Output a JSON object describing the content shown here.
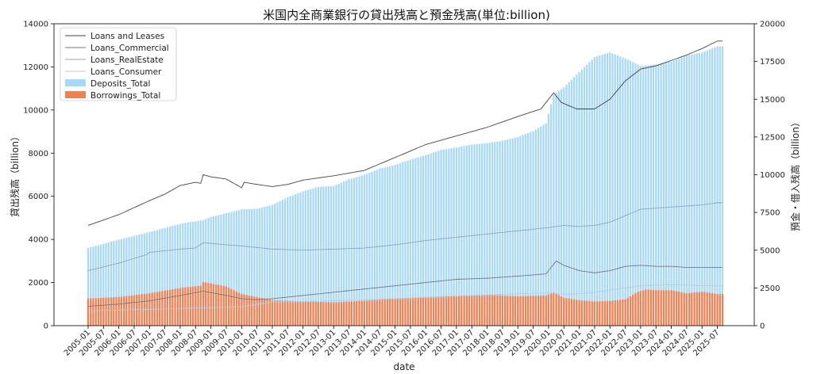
{
  "chart_data": {
    "type": "bar+line",
    "title": "米国内全商業銀行の貸出残高と預金残高(単位:billion)",
    "xlabel": "date",
    "ylabel_left": "貸出残高（billion）",
    "ylabel_right": "預金・借入残高（billion）",
    "ylim_left": [
      0,
      14000
    ],
    "ylim_right": [
      0,
      20000
    ],
    "yticks_left": [
      0,
      2000,
      4000,
      6000,
      8000,
      10000,
      12000,
      14000
    ],
    "yticks_right": [
      0,
      2500,
      5000,
      7500,
      10000,
      12500,
      15000,
      17500,
      20000
    ],
    "x_start": "2005-01",
    "x_end": "2025-09",
    "x_tick_labels": [
      "2005-01",
      "2005-07",
      "2006-01",
      "2006-07",
      "2007-01",
      "2007-07",
      "2008-01",
      "2008-07",
      "2009-01",
      "2009-07",
      "2010-01",
      "2010-07",
      "2011-01",
      "2011-07",
      "2012-01",
      "2012-07",
      "2013-01",
      "2013-07",
      "2014-01",
      "2014-07",
      "2015-01",
      "2015-07",
      "2016-01",
      "2016-07",
      "2017-01",
      "2017-07",
      "2018-01",
      "2018-07",
      "2019-01",
      "2019-07",
      "2020-01",
      "2020-07",
      "2021-01",
      "2021-07",
      "2022-01",
      "2022-07",
      "2023-01",
      "2023-07",
      "2024-01",
      "2024-07",
      "2025-01",
      "2025-07"
    ],
    "legend_position": "top-left",
    "legend": [
      "Loans and Leases",
      "Loans_Commercial",
      "Loans_RealEstate",
      "Loans_Consumer",
      "Deposits_Total",
      "Borrowings_Total"
    ],
    "lines": [
      {
        "name": "Loans and Leases",
        "axis": "left",
        "color": "#444444",
        "points": [
          [
            "2005-01",
            4650
          ],
          [
            "2006-01",
            5150
          ],
          [
            "2007-01",
            5800
          ],
          [
            "2007-07",
            6100
          ],
          [
            "2008-01",
            6500
          ],
          [
            "2008-07",
            6650
          ],
          [
            "2008-09",
            6600
          ],
          [
            "2008-10",
            7000
          ],
          [
            "2009-01",
            6900
          ],
          [
            "2009-07",
            6800
          ],
          [
            "2010-01",
            6400
          ],
          [
            "2010-02",
            6650
          ],
          [
            "2010-07",
            6550
          ],
          [
            "2011-01",
            6450
          ],
          [
            "2011-07",
            6550
          ],
          [
            "2012-01",
            6750
          ],
          [
            "2013-01",
            6950
          ],
          [
            "2014-01",
            7200
          ],
          [
            "2015-01",
            7800
          ],
          [
            "2016-01",
            8400
          ],
          [
            "2017-01",
            8800
          ],
          [
            "2018-01",
            9200
          ],
          [
            "2019-01",
            9700
          ],
          [
            "2019-10",
            10050
          ],
          [
            "2020-03",
            10800
          ],
          [
            "2020-06",
            10350
          ],
          [
            "2020-12",
            10050
          ],
          [
            "2021-07",
            10050
          ],
          [
            "2022-01",
            10500
          ],
          [
            "2022-07",
            11350
          ],
          [
            "2023-01",
            11900
          ],
          [
            "2023-07",
            12050
          ],
          [
            "2024-01",
            12300
          ],
          [
            "2024-07",
            12550
          ],
          [
            "2025-01",
            12850
          ],
          [
            "2025-07",
            13200
          ]
        ]
      },
      {
        "name": "Loans_Commercial",
        "axis": "left",
        "color": "#777777",
        "points": [
          [
            "2005-01",
            900
          ],
          [
            "2006-01",
            1000
          ],
          [
            "2007-01",
            1150
          ],
          [
            "2008-01",
            1400
          ],
          [
            "2008-10",
            1600
          ],
          [
            "2009-07",
            1400
          ],
          [
            "2010-01",
            1250
          ],
          [
            "2010-07",
            1200
          ],
          [
            "2011-01",
            1250
          ],
          [
            "2012-01",
            1400
          ],
          [
            "2013-01",
            1550
          ],
          [
            "2014-01",
            1700
          ],
          [
            "2015-01",
            1850
          ],
          [
            "2016-01",
            2000
          ],
          [
            "2017-01",
            2150
          ],
          [
            "2018-01",
            2200
          ],
          [
            "2019-01",
            2300
          ],
          [
            "2019-12",
            2400
          ],
          [
            "2020-04",
            3000
          ],
          [
            "2020-07",
            2800
          ],
          [
            "2021-01",
            2550
          ],
          [
            "2021-07",
            2450
          ],
          [
            "2022-01",
            2550
          ],
          [
            "2022-07",
            2750
          ],
          [
            "2023-01",
            2800
          ],
          [
            "2023-07",
            2750
          ],
          [
            "2024-01",
            2750
          ],
          [
            "2024-07",
            2700
          ],
          [
            "2025-01",
            2700
          ],
          [
            "2025-07",
            2700
          ]
        ]
      },
      {
        "name": "Loans_RealEstate",
        "axis": "left",
        "color": "#8fa5b5",
        "points": [
          [
            "2005-01",
            2550
          ],
          [
            "2006-01",
            2900
          ],
          [
            "2006-12",
            3300
          ],
          [
            "2007-01",
            3400
          ],
          [
            "2008-01",
            3550
          ],
          [
            "2008-07",
            3600
          ],
          [
            "2008-10",
            3850
          ],
          [
            "2009-07",
            3750
          ],
          [
            "2010-01",
            3700
          ],
          [
            "2011-01",
            3550
          ],
          [
            "2012-01",
            3500
          ],
          [
            "2013-01",
            3550
          ],
          [
            "2014-01",
            3600
          ],
          [
            "2015-01",
            3750
          ],
          [
            "2016-01",
            3950
          ],
          [
            "2017-01",
            4100
          ],
          [
            "2018-01",
            4250
          ],
          [
            "2019-01",
            4400
          ],
          [
            "2020-01",
            4550
          ],
          [
            "2020-07",
            4650
          ],
          [
            "2021-01",
            4600
          ],
          [
            "2021-07",
            4650
          ],
          [
            "2022-01",
            4800
          ],
          [
            "2022-07",
            5100
          ],
          [
            "2023-01",
            5400
          ],
          [
            "2024-01",
            5500
          ],
          [
            "2025-01",
            5600
          ],
          [
            "2025-07",
            5700
          ]
        ]
      },
      {
        "name": "Loans_Consumer",
        "axis": "left",
        "color": "#b9c9e4",
        "points": [
          [
            "2005-01",
            700
          ],
          [
            "2006-01",
            720
          ],
          [
            "2007-01",
            760
          ],
          [
            "2008-01",
            800
          ],
          [
            "2009-01",
            840
          ],
          [
            "2010-01",
            880
          ],
          [
            "2011-01",
            1100
          ],
          [
            "2012-01",
            1120
          ],
          [
            "2013-01",
            1150
          ],
          [
            "2014-01",
            1200
          ],
          [
            "2015-01",
            1250
          ],
          [
            "2016-01",
            1320
          ],
          [
            "2017-01",
            1380
          ],
          [
            "2018-01",
            1420
          ],
          [
            "2019-01",
            1480
          ],
          [
            "2020-01",
            1530
          ],
          [
            "2020-07",
            1450
          ],
          [
            "2021-01",
            1480
          ],
          [
            "2021-07",
            1550
          ],
          [
            "2022-01",
            1650
          ],
          [
            "2022-07",
            1750
          ],
          [
            "2023-01",
            1850
          ],
          [
            "2023-07",
            1880
          ],
          [
            "2024-01",
            1900
          ],
          [
            "2024-07",
            1880
          ],
          [
            "2025-01",
            1850
          ],
          [
            "2025-07",
            1850
          ]
        ]
      }
    ],
    "bars": [
      {
        "name": "Deposits_Total",
        "axis": "right",
        "color": "#a8d8f8",
        "points": [
          [
            "2005-01",
            5150
          ],
          [
            "2006-01",
            5700
          ],
          [
            "2007-01",
            6200
          ],
          [
            "2008-01",
            6750
          ],
          [
            "2008-10",
            7000
          ],
          [
            "2009-01",
            7200
          ],
          [
            "2009-07",
            7450
          ],
          [
            "2010-01",
            7700
          ],
          [
            "2010-07",
            7750
          ],
          [
            "2011-01",
            8000
          ],
          [
            "2011-07",
            8500
          ],
          [
            "2012-01",
            8900
          ],
          [
            "2012-07",
            9200
          ],
          [
            "2013-01",
            9250
          ],
          [
            "2013-07",
            9700
          ],
          [
            "2014-01",
            10000
          ],
          [
            "2014-07",
            10400
          ],
          [
            "2015-01",
            10650
          ],
          [
            "2015-07",
            11000
          ],
          [
            "2016-01",
            11300
          ],
          [
            "2016-07",
            11650
          ],
          [
            "2017-01",
            11800
          ],
          [
            "2017-07",
            12000
          ],
          [
            "2018-01",
            12100
          ],
          [
            "2018-07",
            12250
          ],
          [
            "2019-01",
            12500
          ],
          [
            "2019-07",
            12900
          ],
          [
            "2019-12",
            13400
          ],
          [
            "2020-03",
            15300
          ],
          [
            "2020-07",
            15800
          ],
          [
            "2021-01",
            16800
          ],
          [
            "2021-07",
            17800
          ],
          [
            "2022-01",
            18100
          ],
          [
            "2022-07",
            17700
          ],
          [
            "2022-12",
            17300
          ],
          [
            "2023-01",
            17200
          ],
          [
            "2023-07",
            17300
          ],
          [
            "2024-01",
            17500
          ],
          [
            "2024-07",
            17900
          ],
          [
            "2025-01",
            18100
          ],
          [
            "2025-07",
            18500
          ]
        ]
      },
      {
        "name": "Borrowings_Total",
        "axis": "right",
        "color": "#f28050",
        "points": [
          [
            "2005-01",
            1800
          ],
          [
            "2006-01",
            1900
          ],
          [
            "2007-01",
            2150
          ],
          [
            "2008-01",
            2500
          ],
          [
            "2008-09",
            2650
          ],
          [
            "2008-10",
            2900
          ],
          [
            "2009-07",
            2600
          ],
          [
            "2010-01",
            2100
          ],
          [
            "2010-04",
            2000
          ],
          [
            "2011-01",
            1700
          ],
          [
            "2012-01",
            1600
          ],
          [
            "2013-01",
            1550
          ],
          [
            "2014-01",
            1650
          ],
          [
            "2015-01",
            1800
          ],
          [
            "2016-01",
            1850
          ],
          [
            "2017-01",
            1950
          ],
          [
            "2018-01",
            2050
          ],
          [
            "2019-01",
            1950
          ],
          [
            "2019-12",
            2000
          ],
          [
            "2020-03",
            2200
          ],
          [
            "2020-07",
            1850
          ],
          [
            "2021-01",
            1700
          ],
          [
            "2021-07",
            1600
          ],
          [
            "2022-01",
            1650
          ],
          [
            "2022-07",
            1750
          ],
          [
            "2022-12",
            2250
          ],
          [
            "2023-03",
            2400
          ],
          [
            "2023-07",
            2350
          ],
          [
            "2024-01",
            2350
          ],
          [
            "2024-07",
            2150
          ],
          [
            "2025-01",
            2250
          ],
          [
            "2025-07",
            2100
          ]
        ]
      }
    ]
  }
}
